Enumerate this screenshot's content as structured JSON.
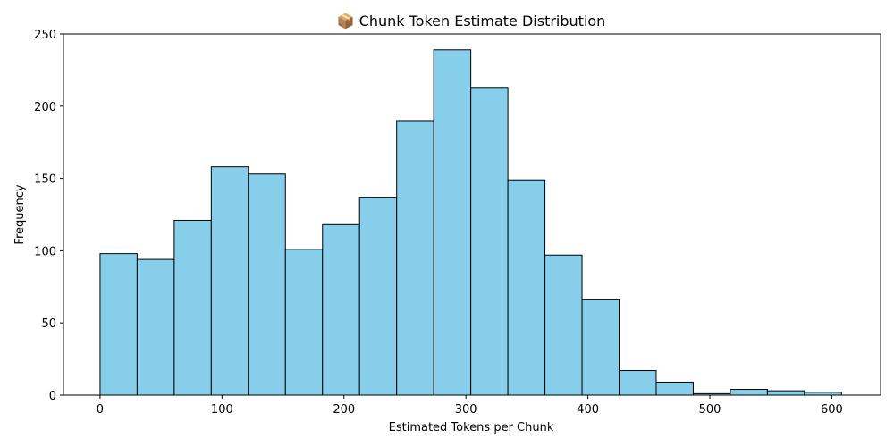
{
  "chart_data": {
    "type": "bar",
    "title": "📦 Chunk Token Estimate Distribution",
    "xlabel": "Estimated Tokens per Chunk",
    "ylabel": "Frequency",
    "xlim": [
      -30,
      640
    ],
    "ylim": [
      0,
      250
    ],
    "xticks": [
      0,
      100,
      200,
      300,
      400,
      500,
      600
    ],
    "yticks": [
      0,
      50,
      100,
      150,
      200,
      250
    ],
    "bins": [
      {
        "start": 0,
        "end": 30.4,
        "count": 98
      },
      {
        "start": 30.4,
        "end": 60.8,
        "count": 94
      },
      {
        "start": 60.8,
        "end": 91.2,
        "count": 121
      },
      {
        "start": 91.2,
        "end": 121.6,
        "count": 158
      },
      {
        "start": 121.6,
        "end": 152.0,
        "count": 153
      },
      {
        "start": 152.0,
        "end": 182.4,
        "count": 101
      },
      {
        "start": 182.4,
        "end": 212.8,
        "count": 118
      },
      {
        "start": 212.8,
        "end": 243.2,
        "count": 137
      },
      {
        "start": 243.2,
        "end": 273.6,
        "count": 190
      },
      {
        "start": 273.6,
        "end": 304.0,
        "count": 239
      },
      {
        "start": 304.0,
        "end": 334.4,
        "count": 213
      },
      {
        "start": 334.4,
        "end": 364.8,
        "count": 149
      },
      {
        "start": 364.8,
        "end": 395.2,
        "count": 97
      },
      {
        "start": 395.2,
        "end": 425.6,
        "count": 66
      },
      {
        "start": 425.6,
        "end": 456.0,
        "count": 17
      },
      {
        "start": 456.0,
        "end": 486.4,
        "count": 9
      },
      {
        "start": 486.4,
        "end": 516.8,
        "count": 1
      },
      {
        "start": 516.8,
        "end": 547.2,
        "count": 4
      },
      {
        "start": 547.2,
        "end": 577.6,
        "count": 3
      },
      {
        "start": 577.6,
        "end": 608.0,
        "count": 2
      }
    ],
    "bar_color": "#87ceeb",
    "edge_color": "#000000",
    "grid": false,
    "legend": "none"
  }
}
